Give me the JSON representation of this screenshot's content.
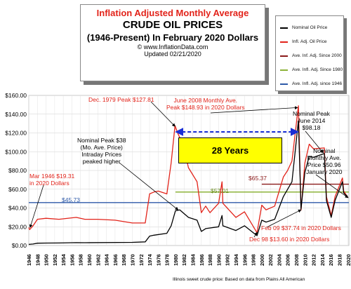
{
  "title": {
    "line1": "Inflation Adjusted Monthly Average",
    "line2": "CRUDE OIL PRICES",
    "line3": "(1946-Present) In February 2020 Dollars",
    "line4": "© www.InflationData.com",
    "line5": "Updated 02/21/2020"
  },
  "legend": [
    {
      "label": "Nominal Oil Price",
      "color": "#000000"
    },
    {
      "label": "Infl. Adj. Oil Price",
      "color": "#e2231a"
    },
    {
      "label": "Ave. Inf. Adj. Since 2000",
      "color": "#8b1a1a"
    },
    {
      "label": "Ave. Infl. Adj. Since 1980",
      "color": "#8db33a"
    },
    {
      "label": "Ave. Infl. Adj. since 1946",
      "color": "#2e5aa8"
    }
  ],
  "annotations": {
    "box_28_years": "28 Years",
    "mar1946_l1": "Mar 1946 $19.31",
    "mar1946_l2": "in 2020 Dollars",
    "dec1979": "Dec. 1979 Peak $127.81",
    "nominal38_l1": "Nominal Peak $38",
    "nominal38_l2": "(Mo. Ave. Price)",
    "nominal38_l3": "Intraday Prices",
    "nominal38_l4": "peaked higher",
    "june2008_l1": "June 2008 Monthly Ave.",
    "june2008_l2": "Peak $148.93 in 2020 Dollars",
    "peak2014_l1": "Nominal Peak",
    "peak2014_l2": "June 2014",
    "peak2014_l3": "$98.18",
    "nomave_l1": "Nominal",
    "nomave_l2": "Monthly Ave.",
    "nomave_l3": "Price $50.96",
    "nomave_l4": "January 2020",
    "feb09": "Feb 09 $37.74 in 2020 Dollars",
    "dec98": "Dec 98 $13.60 in 2020 Dollars",
    "avg_since_1946": "$45.73",
    "avg_since_1980": "$57.01",
    "avg_since_2000": "$65.37"
  },
  "footer": "Illinois sweet crude price: Based on data from Plains All American",
  "chart_data": {
    "type": "line",
    "xlim": [
      1946,
      2020.2
    ],
    "ylim": [
      0,
      160
    ],
    "yticks": [
      "$0.00",
      "$20.00",
      "$40.00",
      "$60.00",
      "$80.00",
      "$100.00",
      "$120.00",
      "$140.00",
      "$160.00"
    ],
    "xticks": [
      "1946",
      "1948",
      "1950",
      "1952",
      "1954",
      "1956",
      "1958",
      "1960",
      "1962",
      "1964",
      "1966",
      "1968",
      "1970",
      "1972",
      "1974",
      "1976",
      "1978",
      "1980",
      "1982",
      "1984",
      "1986",
      "1988",
      "1990",
      "1992",
      "1994",
      "1996",
      "1998",
      "2000",
      "2002",
      "2004",
      "2006",
      "2008",
      "2010",
      "2012",
      "2014",
      "2016",
      "2018",
      "2020"
    ],
    "grid": true,
    "legend_position": "top-right",
    "series": [
      {
        "name": "Nominal Oil Price",
        "color": "#000000",
        "x": [
          1946,
          1947,
          1948,
          1950,
          1953,
          1957,
          1959,
          1970,
          1973,
          1974,
          1975,
          1978,
          1979,
          1980,
          1981,
          1983,
          1985,
          1986,
          1987,
          1990,
          1990.8,
          1991,
          1994,
          1996,
          1998.9,
          2000,
          2001,
          2003,
          2005,
          2007,
          2008.5,
          2009.1,
          2010,
          2011,
          2012,
          2014.5,
          2015,
          2016.1,
          2017,
          2018.7,
          2019,
          2020
        ],
        "y": [
          1.2,
          1.6,
          2.5,
          2.6,
          2.7,
          3.1,
          3.0,
          3.4,
          3.9,
          10,
          11,
          13,
          21,
          37,
          38,
          30,
          27,
          15,
          18,
          20,
          32,
          21,
          16,
          21,
          10.5,
          27,
          25,
          28,
          52,
          68,
          133,
          39,
          78,
          95,
          94,
          98,
          48,
          30,
          48,
          68,
          56,
          51
        ]
      },
      {
        "name": "Infl. Adj. Oil Price",
        "color": "#e2231a",
        "x": [
          1946,
          1946.2,
          1947,
          1948,
          1950,
          1953,
          1957,
          1959,
          1962,
          1966,
          1970,
          1973,
          1974,
          1975,
          1976,
          1978,
          1979,
          1979.9,
          1980.5,
          1981,
          1982,
          1983,
          1985,
          1986,
          1987,
          1988,
          1990,
          1990.8,
          1991,
          1993,
          1994,
          1996,
          1998.9,
          2000,
          2001,
          2003,
          2005,
          2006,
          2007,
          2008.5,
          2009.1,
          2010,
          2011,
          2012,
          2014.5,
          2015,
          2016.1,
          2017,
          2018.7,
          2019,
          2020
        ],
        "y": [
          19.3,
          17,
          21,
          28,
          29,
          28,
          30,
          28,
          28,
          27,
          24,
          24,
          55,
          57,
          58,
          55,
          88,
          127.8,
          120,
          115,
          104,
          83,
          68,
          35,
          42,
          35,
          45,
          68,
          45,
          35,
          30,
          36,
          13.6,
          43,
          38,
          42,
          73,
          80,
          90,
          148.9,
          37.7,
          88,
          108,
          103,
          104,
          52,
          32,
          52,
          72,
          58,
          51
        ]
      }
    ],
    "reference_lines": [
      {
        "name": "Ave. Inf. Adj. Since 2000",
        "value": 65.37,
        "from": 2000,
        "to": 2020.2
      },
      {
        "name": "Ave. Infl. Adj. Since 1980",
        "value": 57.01,
        "from": 1980,
        "to": 2020.2
      },
      {
        "name": "Ave. Infl. Adj. since 1946",
        "value": 45.73,
        "from": 1946,
        "to": 2020.2
      }
    ]
  }
}
